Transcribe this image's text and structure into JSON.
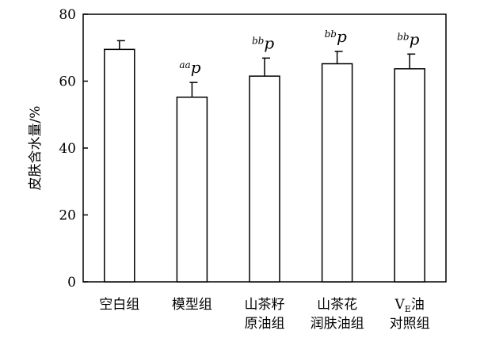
{
  "chart_data": {
    "type": "bar",
    "categories": [
      [
        "空白组"
      ],
      [
        "模型组"
      ],
      [
        "山茶籽",
        "原油组"
      ],
      [
        "山茶花",
        "润肤油组"
      ],
      [
        "V_E油",
        "对照组"
      ]
    ],
    "values": [
      69.5,
      55.2,
      61.5,
      65.2,
      63.7
    ],
    "errors": [
      2.6,
      4.4,
      5.4,
      3.7,
      4.4
    ],
    "significance": [
      {
        "sup": "",
        "main": ""
      },
      {
        "sup": "aa",
        "main": "p"
      },
      {
        "sup": "bb",
        "main": "p"
      },
      {
        "sup": "bb",
        "main": "p"
      },
      {
        "sup": "bb",
        "main": "p"
      }
    ],
    "ylabel": "皮肤含水量/%",
    "ylim": [
      0,
      80
    ],
    "yticks": [
      0,
      20,
      40,
      60,
      80
    ],
    "grid": false,
    "bar_fill": "#ffffff",
    "bar_stroke": "#000000"
  }
}
